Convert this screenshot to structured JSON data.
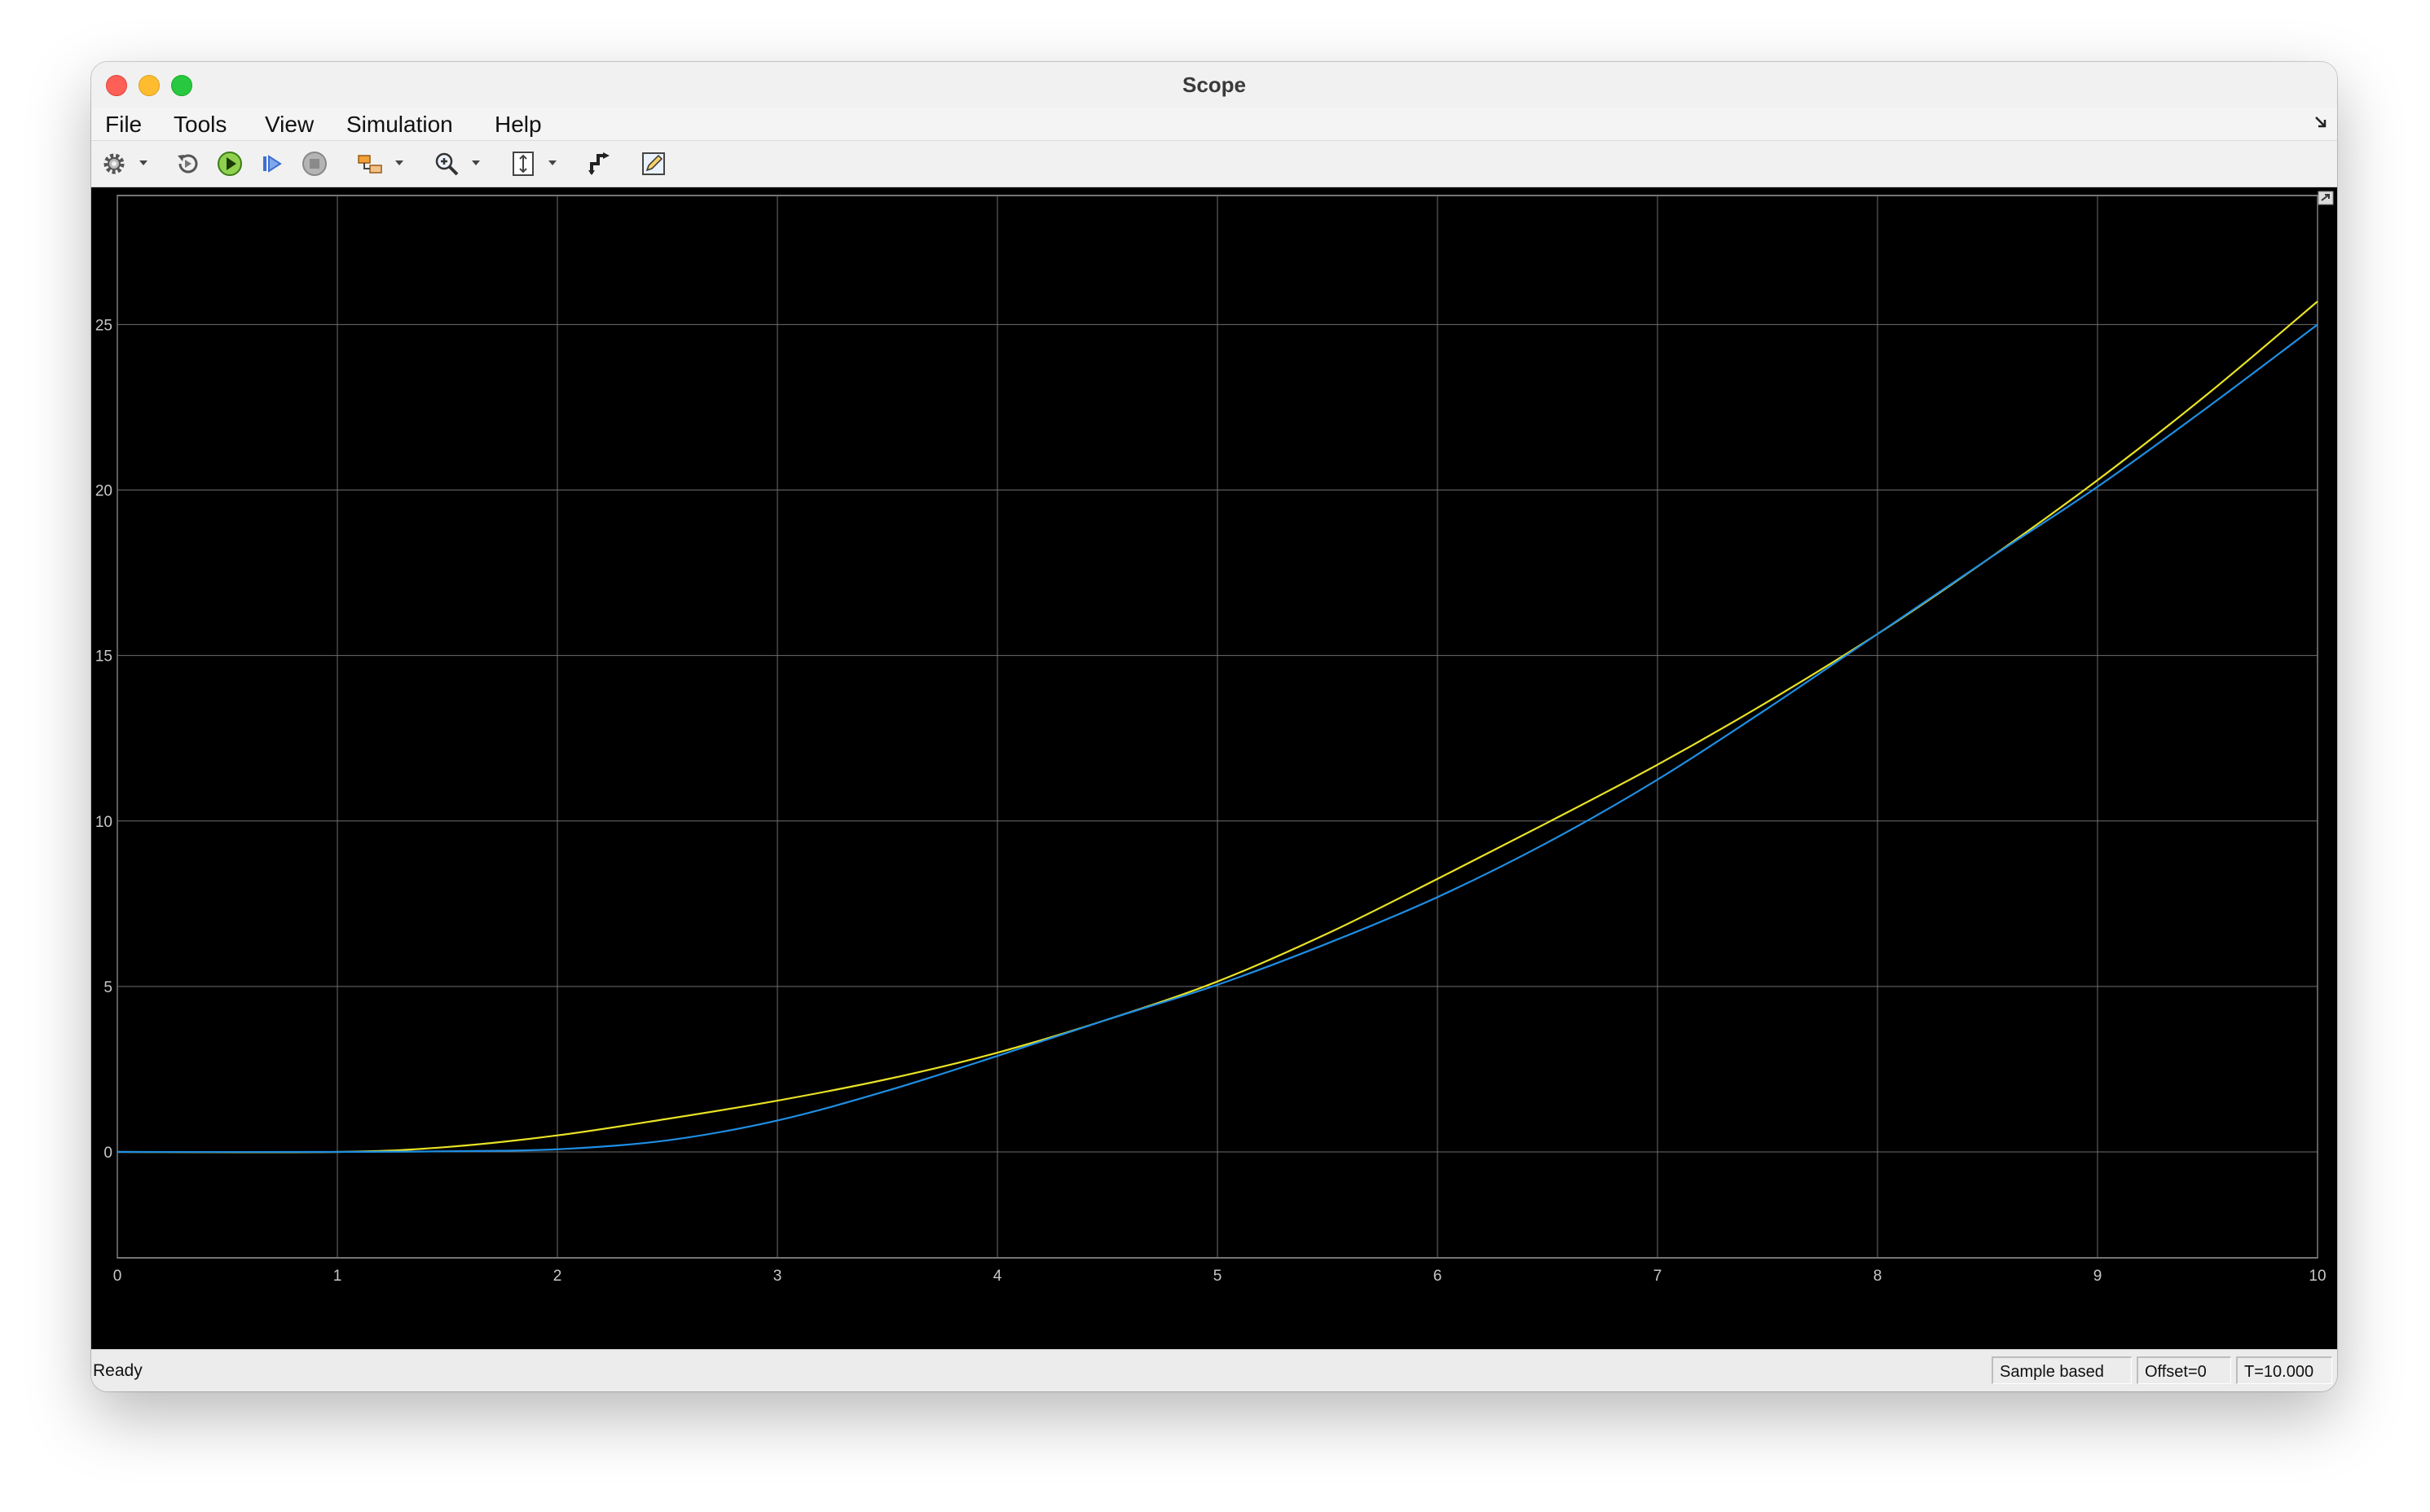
{
  "window": {
    "title": "Scope"
  },
  "menu": [
    "File",
    "Tools",
    "View",
    "Simulation",
    "Help"
  ],
  "toolbar": {
    "icons": [
      "gear-icon",
      "restore-icon",
      "run-icon",
      "step-forward-icon",
      "stop-icon",
      "highlight-block-icon",
      "zoom-in-icon",
      "scale-axes-icon",
      "cursor-measure-icon",
      "edit-icon"
    ]
  },
  "status": {
    "left": "Ready",
    "sample_mode": "Sample based",
    "offset": "Offset=0",
    "time": "T=10.000"
  },
  "colors": {
    "series1": "#e8e226",
    "series2": "#1f8ee3",
    "grid": "#6e6e6e",
    "ticks": "#c8c8c8",
    "background": "#000000"
  },
  "chart_data": {
    "type": "line",
    "xlim": [
      0,
      10
    ],
    "ylim": [
      -3.2,
      28.9
    ],
    "xticks": [
      "0",
      "1",
      "2",
      "3",
      "4",
      "5",
      "6",
      "7",
      "8",
      "9",
      "10"
    ],
    "yticks": [
      "0",
      "5",
      "10",
      "15",
      "20",
      "25"
    ],
    "grid": true,
    "series": [
      {
        "x": [
          0,
          1,
          1.5,
          2,
          2.5,
          3,
          3.5,
          4,
          4.5,
          5,
          5.5,
          6,
          6.5,
          7,
          7.5,
          8,
          8.5,
          9,
          9.5,
          10
        ],
        "y": [
          0,
          0,
          0.15,
          0.5,
          1.0,
          1.55,
          2.2,
          3.0,
          4.0,
          5.15,
          6.6,
          8.25,
          9.95,
          11.7,
          13.6,
          15.65,
          17.9,
          20.3,
          22.9,
          25.7
        ]
      },
      {
        "x": [
          0,
          1,
          1.5,
          2,
          2.5,
          3,
          3.5,
          4,
          4.5,
          5,
          5.5,
          6,
          6.5,
          7,
          7.5,
          8,
          8.5,
          9,
          9.5,
          10
        ],
        "y": [
          0,
          0,
          0.02,
          0.08,
          0.35,
          0.95,
          1.85,
          2.9,
          4.0,
          5.05,
          6.3,
          7.7,
          9.35,
          11.25,
          13.4,
          15.65,
          17.9,
          20.1,
          22.5,
          25.0
        ]
      }
    ]
  }
}
